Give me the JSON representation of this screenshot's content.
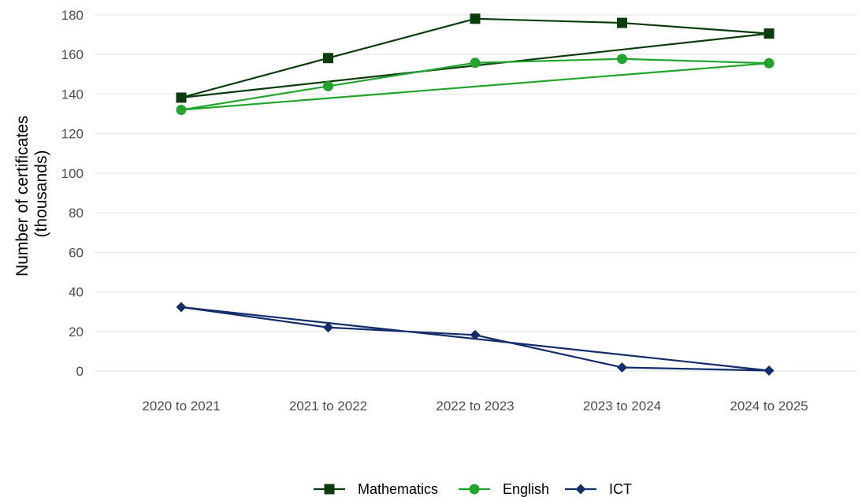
{
  "chart_data": {
    "type": "line",
    "ylabel_lines": [
      "Number of certificates",
      "(thousands)"
    ],
    "xlabel": "",
    "categories": [
      "2020 to 2021",
      "2021 to 2022",
      "2022 to 2023",
      "2023 to 2024",
      "2024 to 2025"
    ],
    "ylim": [
      0,
      180
    ],
    "yticks": [
      0,
      20,
      40,
      60,
      80,
      100,
      120,
      140,
      160,
      180
    ],
    "grid": true,
    "legend_position": "bottom",
    "series": [
      {
        "name": "Mathematics",
        "color": "#0b3d0b",
        "marker": "square",
        "values": [
          138.2,
          158.2,
          178.1,
          176.0,
          170.6
        ]
      },
      {
        "name": "English",
        "color": "#22a52d",
        "marker": "circle",
        "values": [
          132.0,
          144.0,
          155.8,
          157.8,
          155.6
        ]
      },
      {
        "name": "ICT",
        "color": "#132e6b",
        "marker": "diamond",
        "values": [
          32.3,
          22.0,
          18.2,
          1.8,
          0.2
        ]
      }
    ]
  }
}
